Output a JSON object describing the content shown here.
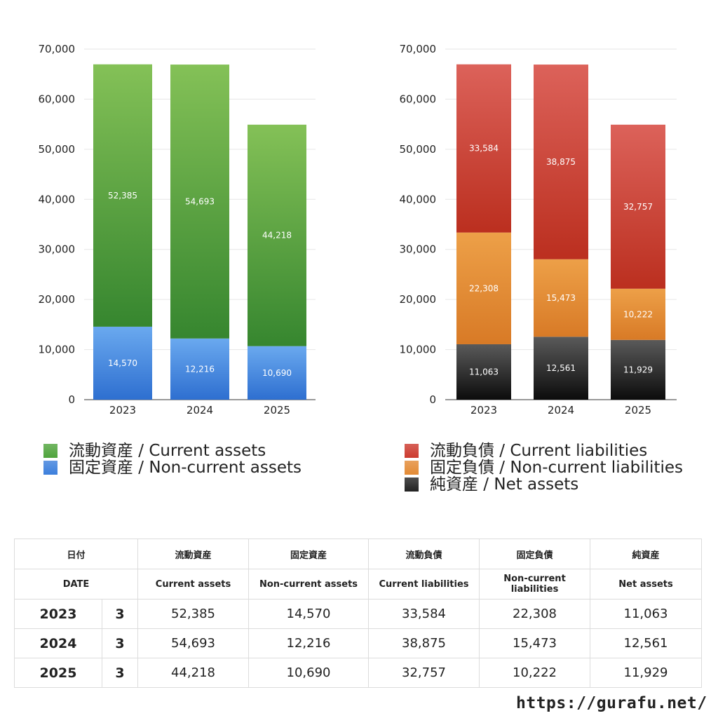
{
  "chart_data": [
    {
      "type": "bar",
      "stacked": true,
      "categories": [
        "2023",
        "2024",
        "2025"
      ],
      "ylim": [
        0,
        70000
      ],
      "yticks": [
        0,
        10000,
        20000,
        30000,
        40000,
        50000,
        60000,
        70000
      ],
      "ytick_labels": [
        "0",
        "10,000",
        "20,000",
        "30,000",
        "40,000",
        "50,000",
        "60,000",
        "70,000"
      ],
      "grid": true,
      "series": [
        {
          "name": "固定資産 / Non-current assets",
          "values": [
            14570,
            12216,
            10690
          ],
          "labels": [
            "14,570",
            "12,216",
            "10,690"
          ],
          "color_top": "#6aa9ef",
          "color_bottom": "#2e6fd0"
        },
        {
          "name": "流動資産 / Current assets",
          "values": [
            52385,
            54693,
            44218
          ],
          "labels": [
            "52,385",
            "54,693",
            "44,218"
          ],
          "color_top": "#84c157",
          "color_bottom": "#36862f"
        }
      ],
      "legend_position": "bottom"
    },
    {
      "type": "bar",
      "stacked": true,
      "categories": [
        "2023",
        "2024",
        "2025"
      ],
      "ylim": [
        0,
        70000
      ],
      "yticks": [
        0,
        10000,
        20000,
        30000,
        40000,
        50000,
        60000,
        70000
      ],
      "ytick_labels": [
        "0",
        "10,000",
        "20,000",
        "30,000",
        "40,000",
        "50,000",
        "60,000",
        "70,000"
      ],
      "grid": true,
      "series": [
        {
          "name": "純資産 / Net assets",
          "values": [
            11063,
            12561,
            11929
          ],
          "labels": [
            "11,063",
            "12,561",
            "11,929"
          ],
          "color_top": "#5a5a5a",
          "color_bottom": "#0c0c0c"
        },
        {
          "name": "固定負債 / Non-current liabilities",
          "values": [
            22308,
            15473,
            10222
          ],
          "labels": [
            "22,308",
            "15,473",
            "10,222"
          ],
          "color_top": "#eda048",
          "color_bottom": "#d87a26"
        },
        {
          "name": "流動負債 / Current liabilities",
          "values": [
            33584,
            38875,
            32757
          ],
          "labels": [
            "33,584",
            "38,875",
            "32,757"
          ],
          "color_top": "#dc625a",
          "color_bottom": "#bb2f1f"
        }
      ],
      "legend_position": "bottom"
    }
  ],
  "legends": {
    "left": [
      {
        "label": "流動資産 / Current assets",
        "color": "#4fa43c"
      },
      {
        "label": "固定資産 / Non-current assets",
        "color": "#3c7fdc"
      }
    ],
    "right": [
      {
        "label": "流動負債 / Current liabilities",
        "color": "#cc3a2e"
      },
      {
        "label": "固定負債 / Non-current liabilities",
        "color": "#e38a34"
      },
      {
        "label": "純資産 / Net assets",
        "color": "#222222"
      }
    ]
  },
  "table": {
    "header_jp": [
      "日付",
      "流動資産",
      "固定資産",
      "流動負債",
      "固定負債",
      "純資産"
    ],
    "header_en": [
      "DATE",
      "Current assets",
      "Non-current assets",
      "Current liabilities",
      "Non-current liabilities",
      "Net assets"
    ],
    "rows": [
      {
        "year": "2023",
        "month": "3",
        "values": [
          "52,385",
          "14,570",
          "33,584",
          "22,308",
          "11,063"
        ]
      },
      {
        "year": "2024",
        "month": "3",
        "values": [
          "54,693",
          "12,216",
          "38,875",
          "15,473",
          "12,561"
        ]
      },
      {
        "year": "2025",
        "month": "3",
        "values": [
          "44,218",
          "10,690",
          "32,757",
          "10,222",
          "11,929"
        ]
      }
    ]
  },
  "site_url": "https://gurafu.net/"
}
